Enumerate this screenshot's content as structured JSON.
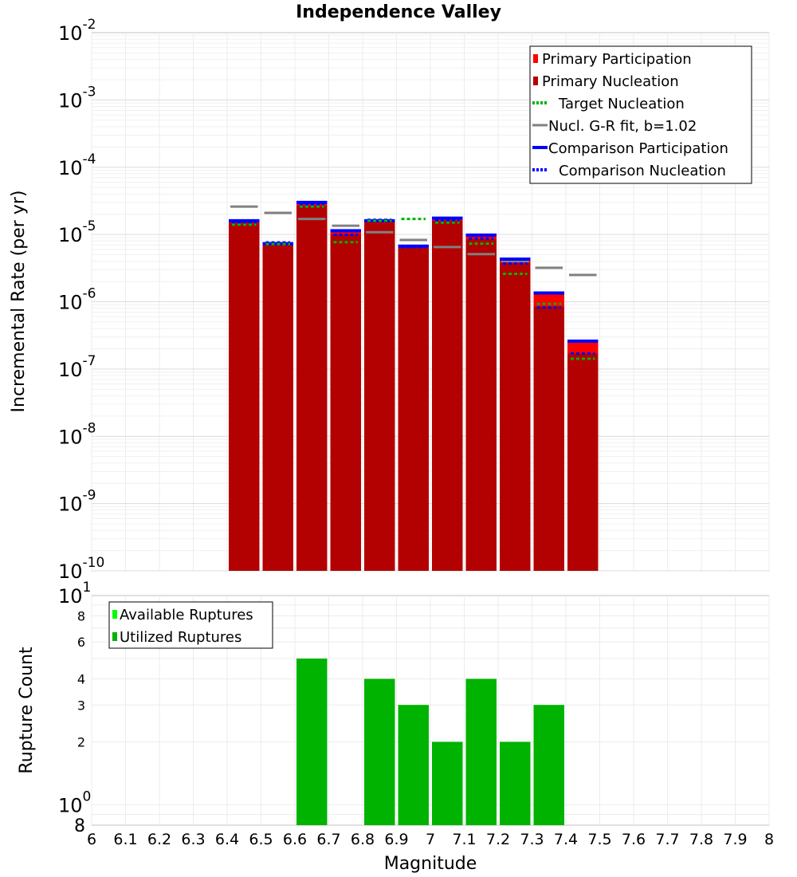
{
  "chart_data": [
    {
      "type": "bar",
      "title": "Independence Valley",
      "xlabel": "",
      "ylabel": "Incremental Rate (per yr)",
      "yscale": "log",
      "xlim": [
        6,
        8
      ],
      "ylim": [
        1e-10,
        0.01
      ],
      "bin_width": 0.1,
      "ytick_exponents": [
        "-2",
        "-3",
        "-4",
        "-5",
        "-6",
        "-7",
        "-8",
        "-9",
        "-10"
      ],
      "legend": {
        "placement": "top-right",
        "entries": [
          {
            "label": "Primary Participation",
            "color": "#ff0000",
            "style": "box"
          },
          {
            "label": "Primary Nucleation",
            "color": "#b30000",
            "style": "box"
          },
          {
            "label": "Target Nucleation",
            "color": "#00b300",
            "style": "dotted"
          },
          {
            "label": "Nucl. G-R fit, b=1.02",
            "color": "#808080",
            "style": "solid"
          },
          {
            "label": "Comparison Participation",
            "color": "#0000ff",
            "style": "solid"
          },
          {
            "label": "Comparison Nucleation",
            "color": "#0000ff",
            "style": "dotted"
          }
        ]
      },
      "series": [
        {
          "name": "Primary Participation",
          "x": [
            6.45,
            6.55,
            6.65,
            6.75,
            6.85,
            6.95,
            7.05,
            7.15,
            7.25,
            7.35,
            7.45
          ],
          "values": [
            1.6e-05,
            7.3e-06,
            3e-05,
            1.14e-05,
            1.6e-05,
            6.7e-06,
            1.75e-05,
            9.8e-06,
            4.3e-06,
            1.35e-06,
            2.6e-07
          ]
        },
        {
          "name": "Primary Nucleation",
          "x": [
            6.45,
            6.55,
            6.65,
            6.75,
            6.85,
            6.95,
            7.05,
            7.15,
            7.25,
            7.35,
            7.45
          ],
          "values": [
            1.5e-05,
            7e-06,
            2.7e-05,
            1e-05,
            1.5e-05,
            6.3e-06,
            1.6e-05,
            8.5e-06,
            3.8e-06,
            8.5e-07,
            1.7e-07
          ]
        },
        {
          "name": "Target Nucleation",
          "x": [
            6.45,
            6.55,
            6.65,
            6.75,
            6.85,
            6.95,
            7.05,
            7.15,
            7.25,
            7.35,
            7.45
          ],
          "values": [
            1.4e-05,
            7.2e-06,
            2.6e-05,
            7.7e-06,
            1.6e-05,
            1.7e-05,
            1.5e-05,
            7.3e-06,
            2.6e-06,
            9.3e-07,
            1.42e-07
          ]
        },
        {
          "name": "Nucl. G-R fit, b=1.02",
          "x": [
            6.45,
            6.55,
            6.65,
            6.75,
            6.85,
            6.95,
            7.05,
            7.15,
            7.25,
            7.35,
            7.45
          ],
          "values": [
            2.6e-05,
            2.1e-05,
            1.7e-05,
            1.35e-05,
            1.08e-05,
            8.3e-06,
            6.5e-06,
            5.1e-06,
            4e-06,
            3.2e-06,
            2.5e-06
          ]
        },
        {
          "name": "Comparison Participation",
          "x": [
            6.45,
            6.55,
            6.65,
            6.75,
            6.85,
            6.95,
            7.05,
            7.15,
            7.25,
            7.35,
            7.45
          ],
          "values": [
            1.6e-05,
            7.3e-06,
            3e-05,
            1.14e-05,
            1.6e-05,
            6.7e-06,
            1.75e-05,
            9.8e-06,
            4.3e-06,
            1.35e-06,
            2.6e-07
          ]
        },
        {
          "name": "Comparison Nucleation",
          "x": [
            6.45,
            6.55,
            6.65,
            6.75,
            6.85,
            6.95,
            7.05,
            7.15,
            7.25,
            7.35,
            7.45
          ],
          "values": [
            1.5e-05,
            7.6e-06,
            2.8e-05,
            9.9e-06,
            1.65e-05,
            6.5e-06,
            1.6e-05,
            8.7e-06,
            3.7e-06,
            8.2e-07,
            1.7e-07
          ]
        }
      ]
    },
    {
      "type": "bar",
      "title": "",
      "xlabel": "Magnitude",
      "ylabel": "Rupture Count",
      "yscale": "log",
      "xlim": [
        6,
        8
      ],
      "ylim": [
        0.8,
        10
      ],
      "bin_width": 0.1,
      "xtick_labels": [
        "6",
        "6.1",
        "6.2",
        "6.3",
        "6.4",
        "6.5",
        "6.6",
        "6.7",
        "6.8",
        "6.9",
        "7",
        "7.1",
        "7.2",
        "7.3",
        "7.4",
        "7.5",
        "7.6",
        "7.7",
        "7.8",
        "7.9",
        "8"
      ],
      "ytick_labels": [
        {
          "value": 10,
          "base": "10",
          "exp": "1"
        },
        {
          "value": 8,
          "label": "8"
        },
        {
          "value": 6,
          "label": "6"
        },
        {
          "value": 4,
          "label": "4"
        },
        {
          "value": 3,
          "label": "3"
        },
        {
          "value": 2,
          "label": "2"
        },
        {
          "value": 1,
          "base": "10",
          "exp": "0"
        },
        {
          "value": 0.8,
          "label": "8"
        }
      ],
      "legend": {
        "placement": "top-left",
        "entries": [
          {
            "label": "Available Ruptures",
            "color": "#00ff00",
            "style": "box"
          },
          {
            "label": "Utilized Ruptures",
            "color": "#00b300",
            "style": "box"
          }
        ]
      },
      "series": [
        {
          "name": "Available Ruptures",
          "x": [
            6.65,
            6.85,
            6.95,
            7.05,
            7.15,
            7.25,
            7.35
          ],
          "values": [
            5,
            4,
            3,
            2,
            4,
            2,
            3
          ]
        },
        {
          "name": "Utilized Ruptures",
          "x": [
            6.65,
            6.85,
            6.95,
            7.05,
            7.15,
            7.25,
            7.35
          ],
          "values": [
            5,
            4,
            3,
            2,
            4,
            2,
            3
          ]
        }
      ]
    }
  ]
}
